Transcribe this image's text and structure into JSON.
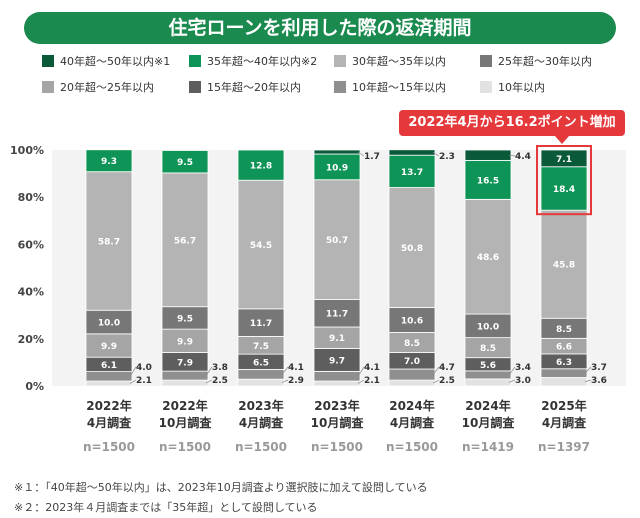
{
  "title": "住宅ローンを利用した際の返済期間",
  "callout": "2022年4月から16.2ポイント増加",
  "colors": {
    "title_bg": "#1a8a4e",
    "callout": "#e5383b",
    "highlight_border": "#e5383b"
  },
  "chart_data": {
    "type": "bar",
    "stacked": true,
    "ylim": [
      0,
      100
    ],
    "yticks": [
      "0%",
      "20%",
      "40%",
      "60%",
      "80%",
      "100%"
    ],
    "categories": [
      "2022年|4月調査",
      "2022年|10月調査",
      "2023年|4月調査",
      "2023年|10月調査",
      "2024年|4月調査",
      "2024年|10月調査",
      "2025年|4月調査"
    ],
    "n_labels": [
      "n=1500",
      "n=1500",
      "n=1500",
      "n=1500",
      "n=1500",
      "n=1419",
      "n=1397"
    ],
    "series": [
      {
        "name": "10年以内",
        "color": "#e2e2e2",
        "values": [
          2.1,
          2.5,
          2.9,
          2.1,
          2.5,
          3.0,
          3.6
        ],
        "label_mode": "outside"
      },
      {
        "name": "10年超〜15年以内",
        "color": "#8f8f8f",
        "values": [
          4.0,
          3.8,
          4.1,
          4.1,
          4.7,
          3.4,
          3.7
        ],
        "label_mode": "outside"
      },
      {
        "name": "15年超〜20年以内",
        "color": "#5e5e5e",
        "values": [
          6.1,
          7.9,
          6.5,
          9.7,
          7.0,
          5.6,
          6.3
        ],
        "label_mode": "inside"
      },
      {
        "name": "20年超〜25年以内",
        "color": "#a5a5a5",
        "values": [
          9.9,
          9.9,
          7.5,
          9.1,
          8.5,
          8.5,
          6.6
        ],
        "label_mode": "inside"
      },
      {
        "name": "25年超〜30年以内",
        "color": "#777777",
        "values": [
          10.0,
          9.5,
          11.7,
          11.7,
          10.6,
          10.0,
          8.5
        ],
        "label_mode": "inside"
      },
      {
        "name": "30年超〜35年以内",
        "color": "#b4b4b4",
        "values": [
          58.7,
          56.7,
          54.5,
          50.7,
          50.8,
          48.6,
          45.8
        ],
        "label_mode": "inside"
      },
      {
        "name": "35年超〜40年以内※2",
        "color": "#0f9457",
        "values": [
          9.3,
          9.5,
          12.8,
          10.9,
          13.7,
          16.5,
          18.4
        ],
        "label_mode": "inside"
      },
      {
        "name": "40年超〜50年以内※1",
        "color": "#0a5a3a",
        "values": [
          null,
          null,
          null,
          1.7,
          2.3,
          4.4,
          7.1
        ],
        "label_mode": "mixed",
        "outside_idx": [
          3,
          4,
          5
        ]
      }
    ],
    "legend_order": [
      "40年超〜50年以内※1",
      "35年超〜40年以内※2",
      "30年超〜35年以内",
      "25年超〜30年以内",
      "20年超〜25年以内",
      "15年超〜20年以内",
      "10年超〜15年以内",
      "10年以内"
    ],
    "highlight_index": 6
  },
  "notes": [
    "※１：「40年超〜50年以内」は、2023年10月調査より選択肢に加えて設問している",
    "※２：2023年４月調査までは「35年超」として設問している"
  ]
}
